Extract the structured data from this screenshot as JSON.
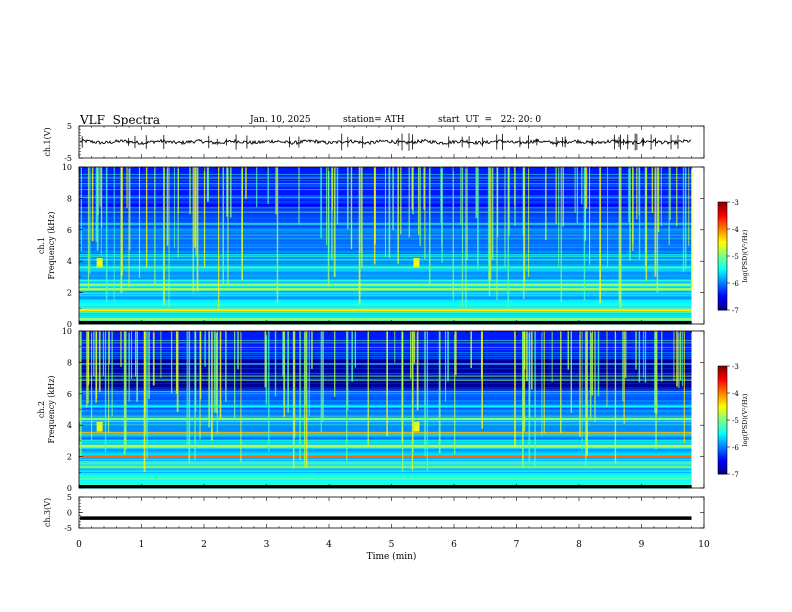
{
  "header": {
    "title": "VLF  Spectra",
    "date": "Jan. 10, 2025",
    "station": "station= ATH",
    "start": "start  UT  =   22: 20: 0"
  },
  "chart_data": [
    {
      "type": "line",
      "panel": "ch1-waveform",
      "ylabel": "ch.1(V)",
      "ylim": [
        -5,
        5
      ],
      "yticks": [
        "5",
        "-5"
      ],
      "xlim": [
        0,
        10
      ],
      "x_end": 9.8,
      "series": [
        {
          "baseline": 0.0,
          "amplitude": 0.6
        }
      ]
    },
    {
      "type": "heatmap",
      "panel": "ch1-spectrogram",
      "ylabel": "ch.1\nFrequency  (kHz)",
      "ylim": [
        0,
        10
      ],
      "yticks": [
        "0",
        "2",
        "4",
        "6",
        "8",
        "10"
      ],
      "xlim": [
        0,
        10
      ],
      "x_end": 9.8,
      "colorbar": {
        "label": "log(PSD)(V²/Hz)",
        "range": [
          -7,
          -3
        ],
        "ticks": [
          "-3",
          "-4",
          "-5",
          "-6",
          "-7"
        ]
      },
      "bands": [
        {
          "f": 2.2,
          "level": -4.7
        },
        {
          "f": 2.5,
          "level": -4.9
        },
        {
          "f": 0.9,
          "level": -4.4
        },
        {
          "f": 0.3,
          "level": -4.8
        },
        {
          "f": 3.6,
          "level": -5.3
        },
        {
          "f": 4.4,
          "level": -5.6
        },
        {
          "f": 6.0,
          "level": -5.9
        },
        {
          "f": 7.1,
          "level": -6.2
        },
        {
          "f": 8.0,
          "level": -6.3
        }
      ]
    },
    {
      "type": "heatmap",
      "panel": "ch2-spectrogram",
      "ylabel": "ch.2\nFrequency  (kHz)",
      "ylim": [
        0,
        10
      ],
      "yticks": [
        "0",
        "2",
        "4",
        "6",
        "8",
        "10"
      ],
      "xlim": [
        0,
        10
      ],
      "x_end": 9.8,
      "colorbar": {
        "label": "log(PSD)(V²/Hz)",
        "range": [
          -7,
          -3
        ],
        "ticks": [
          "-3",
          "-4",
          "-5",
          "-6",
          "-7"
        ]
      },
      "bands": [
        {
          "f": 2.0,
          "level": -3.9
        },
        {
          "f": 3.5,
          "level": -4.3
        },
        {
          "f": 2.7,
          "level": -4.8
        },
        {
          "f": 1.3,
          "level": -4.9
        },
        {
          "f": 4.4,
          "level": -5.0
        },
        {
          "f": 5.2,
          "level": -5.5
        },
        {
          "f": 0.6,
          "level": -5.3
        }
      ]
    },
    {
      "type": "line",
      "panel": "ch3-waveform",
      "ylabel": "ch.3(V)",
      "ylim": [
        -5,
        5
      ],
      "yticks": [
        "5",
        "0",
        "-5"
      ],
      "xlim": [
        0,
        10
      ],
      "x_end": 9.8,
      "xlabel": "Time  (min)",
      "xticks": [
        "0",
        "1",
        "2",
        "3",
        "4",
        "5",
        "6",
        "7",
        "8",
        "9",
        "10"
      ],
      "series": [
        {
          "baseline": -1.8
        }
      ]
    }
  ]
}
